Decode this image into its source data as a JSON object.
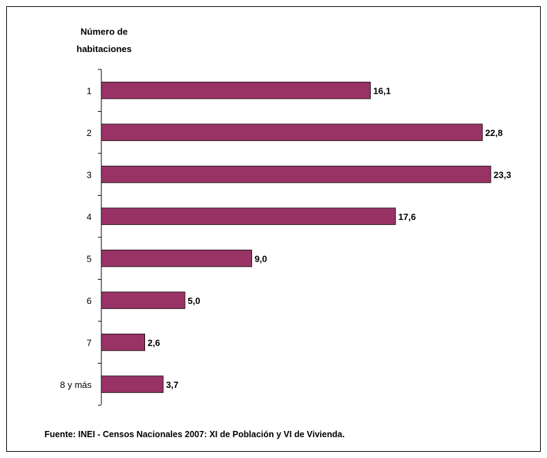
{
  "chart_data": {
    "type": "bar",
    "orientation": "horizontal",
    "ylabel_lines": [
      "Número de",
      "habitaciones"
    ],
    "categories": [
      "1",
      "2",
      "3",
      "4",
      "5",
      "6",
      "7",
      "8 y más"
    ],
    "values": [
      16.1,
      22.8,
      23.3,
      17.6,
      9.0,
      5.0,
      2.6,
      3.7
    ],
    "value_labels": [
      "16,1",
      "22,8",
      "23,3",
      "17,6",
      "9,0",
      "5,0",
      "2,6",
      "3,7"
    ],
    "bar_color": "#993366",
    "grid": false,
    "legend": "none"
  },
  "source": "Fuente: INEI - Censos Nacionales 2007: XI de Población y VI de Vivienda."
}
